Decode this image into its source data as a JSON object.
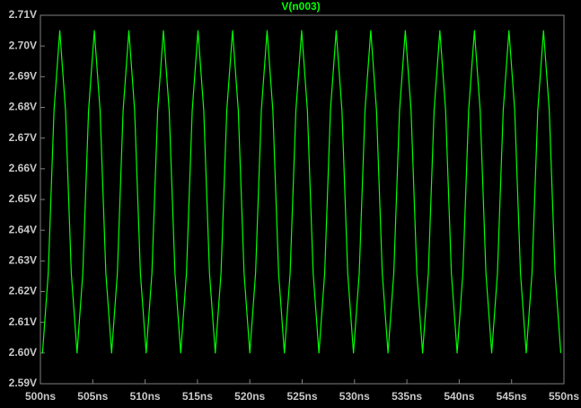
{
  "chart_data": {
    "type": "line",
    "title": "V(n003)",
    "x": [
      500.2,
      500.75,
      501.3,
      501.85,
      502.4,
      502.95,
      503.5,
      504.05,
      504.6,
      505.15,
      505.7,
      506.25,
      506.8,
      507.35,
      507.9,
      508.45,
      509,
      509.55,
      510.1,
      510.65,
      511.2,
      511.75,
      512.3,
      512.85,
      513.4,
      513.95,
      514.5,
      515.05,
      515.6,
      516.15,
      516.7,
      517.25,
      517.8,
      518.35,
      518.9,
      519.45,
      520,
      520.55,
      521.1,
      521.65,
      522.2,
      522.75,
      523.3,
      523.85,
      524.4,
      524.95,
      525.5,
      526.05,
      526.6,
      527.15,
      527.7,
      528.25,
      528.8,
      529.35,
      529.9,
      530.45,
      531,
      531.55,
      532.1,
      532.65,
      533.2,
      533.75,
      534.3,
      534.85,
      535.4,
      535.95,
      536.5,
      537.05,
      537.6,
      538.15,
      538.7,
      539.25,
      539.8,
      540.35,
      540.9,
      541.45,
      542,
      542.55,
      543.1,
      543.65,
      544.2,
      544.75,
      545.3,
      545.85,
      546.4,
      546.95,
      547.5,
      548.05,
      548.6,
      549.15,
      549.7
    ],
    "series": [
      {
        "name": "V(n003)",
        "color": "#00ff00",
        "values": [
          2.6,
          2.626,
          2.679,
          2.705,
          2.679,
          2.626,
          2.6,
          2.626,
          2.679,
          2.705,
          2.679,
          2.626,
          2.6,
          2.626,
          2.679,
          2.705,
          2.679,
          2.626,
          2.6,
          2.626,
          2.679,
          2.705,
          2.679,
          2.626,
          2.6,
          2.626,
          2.679,
          2.705,
          2.679,
          2.626,
          2.6,
          2.626,
          2.679,
          2.705,
          2.679,
          2.626,
          2.6,
          2.626,
          2.679,
          2.705,
          2.679,
          2.626,
          2.6,
          2.626,
          2.679,
          2.705,
          2.679,
          2.626,
          2.6,
          2.626,
          2.679,
          2.705,
          2.679,
          2.626,
          2.6,
          2.626,
          2.679,
          2.705,
          2.679,
          2.626,
          2.6,
          2.626,
          2.679,
          2.705,
          2.679,
          2.626,
          2.6,
          2.626,
          2.679,
          2.705,
          2.679,
          2.626,
          2.6,
          2.626,
          2.679,
          2.705,
          2.679,
          2.626,
          2.6,
          2.626,
          2.679,
          2.705,
          2.679,
          2.626,
          2.6,
          2.626,
          2.679,
          2.705,
          2.679,
          2.626,
          2.6
        ]
      }
    ],
    "xlim": [
      500,
      550
    ],
    "xticks": [
      {
        "value": 500,
        "label": "500ns"
      },
      {
        "value": 505,
        "label": "505ns"
      },
      {
        "value": 510,
        "label": "510ns"
      },
      {
        "value": 515,
        "label": "515ns"
      },
      {
        "value": 520,
        "label": "520ns"
      },
      {
        "value": 525,
        "label": "525ns"
      },
      {
        "value": 530,
        "label": "530ns"
      },
      {
        "value": 535,
        "label": "535ns"
      },
      {
        "value": 540,
        "label": "540ns"
      },
      {
        "value": 545,
        "label": "545ns"
      },
      {
        "value": 550,
        "label": "550ns"
      }
    ],
    "ylim": [
      2.59,
      2.71
    ],
    "yticks": [
      {
        "value": 2.59,
        "label": "2.59V"
      },
      {
        "value": 2.6,
        "label": "2.60V"
      },
      {
        "value": 2.61,
        "label": "2.61V"
      },
      {
        "value": 2.62,
        "label": "2.62V"
      },
      {
        "value": 2.63,
        "label": "2.63V"
      },
      {
        "value": 2.64,
        "label": "2.64V"
      },
      {
        "value": 2.65,
        "label": "2.65V"
      },
      {
        "value": 2.66,
        "label": "2.66V"
      },
      {
        "value": 2.67,
        "label": "2.67V"
      },
      {
        "value": 2.68,
        "label": "2.68V"
      },
      {
        "value": 2.69,
        "label": "2.69V"
      },
      {
        "value": 2.7,
        "label": "2.70V"
      },
      {
        "value": 2.71,
        "label": "2.71V"
      }
    ],
    "grid": false
  }
}
